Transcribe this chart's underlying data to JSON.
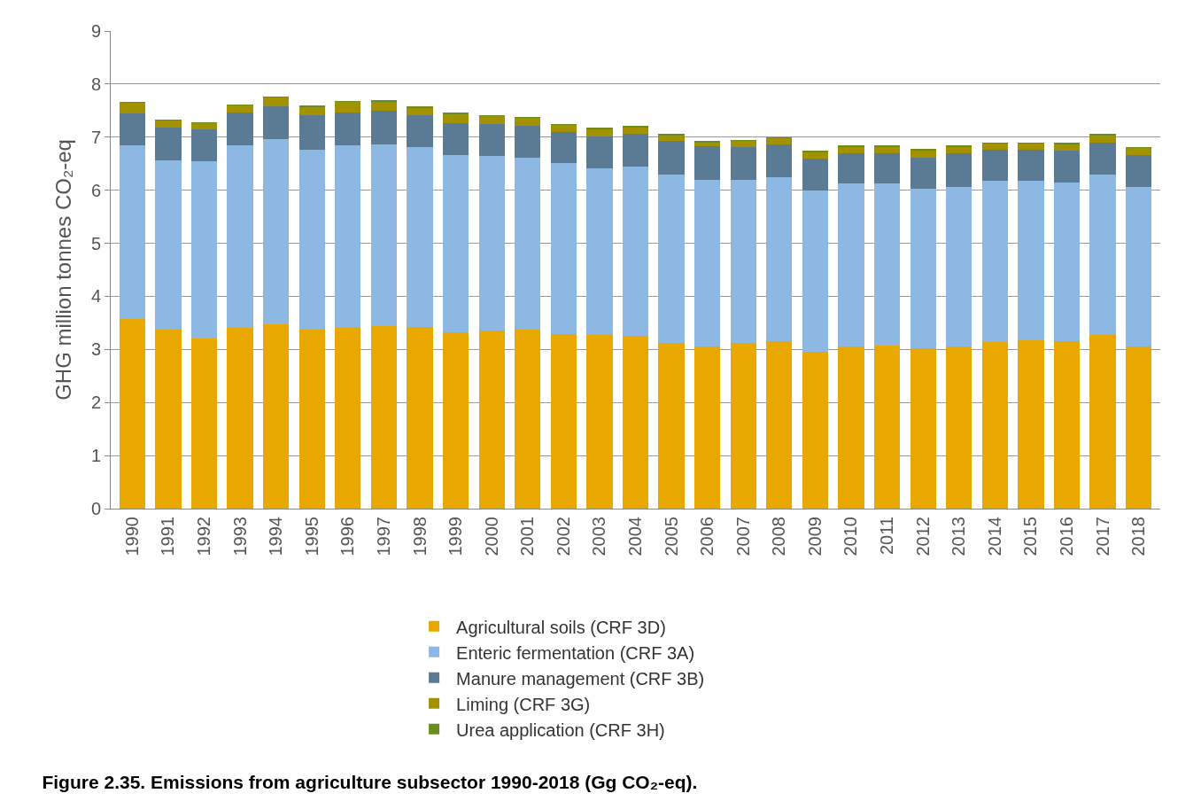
{
  "chart_data": {
    "type": "bar",
    "stacked": true,
    "title": "Figure 2.35. Emissions from agriculture subsector 1990-2018 (Gg CO₂-eq).",
    "ylabel": "GHG million tonnes CO₂-eq",
    "categories": [
      "1990",
      "1991",
      "1992",
      "1993",
      "1994",
      "1995",
      "1996",
      "1997",
      "1998",
      "1999",
      "2000",
      "2001",
      "2002",
      "2003",
      "2004",
      "2005",
      "2006",
      "2007",
      "2008",
      "2009",
      "2010",
      "2011",
      "2012",
      "2013",
      "2014",
      "2015",
      "2016",
      "2017",
      "2018"
    ],
    "series": [
      {
        "name": "Agricultural soils (CRF 3D)",
        "color": "#e8a800",
        "values": [
          3.57,
          3.38,
          3.21,
          3.41,
          3.48,
          3.37,
          3.4,
          3.44,
          3.42,
          3.33,
          3.36,
          3.38,
          3.29,
          3.27,
          3.25,
          3.13,
          3.06,
          3.12,
          3.15,
          2.95,
          3.05,
          3.07,
          3.03,
          3.06,
          3.14,
          3.17,
          3.15,
          3.28,
          3.05
        ]
      },
      {
        "name": "Enteric fermentation (CRF 3A)",
        "color": "#8db8e3",
        "values": [
          3.28,
          3.19,
          3.33,
          3.43,
          3.48,
          3.4,
          3.44,
          3.42,
          3.39,
          3.33,
          3.28,
          3.24,
          3.22,
          3.14,
          3.2,
          3.17,
          3.14,
          3.08,
          3.1,
          3.05,
          3.07,
          3.05,
          3.0,
          3.0,
          3.03,
          3.0,
          2.99,
          3.02,
          3.01
        ]
      },
      {
        "name": "Manure management (CRF 3B)",
        "color": "#5a7b93",
        "values": [
          0.6,
          0.61,
          0.6,
          0.63,
          0.62,
          0.64,
          0.63,
          0.63,
          0.61,
          0.61,
          0.6,
          0.6,
          0.58,
          0.61,
          0.62,
          0.63,
          0.63,
          0.62,
          0.62,
          0.59,
          0.57,
          0.57,
          0.59,
          0.63,
          0.59,
          0.59,
          0.6,
          0.6,
          0.6
        ]
      },
      {
        "name": "Liming (CRF 3G)",
        "color": "#a39200",
        "values": [
          0.2,
          0.14,
          0.13,
          0.13,
          0.17,
          0.17,
          0.2,
          0.19,
          0.14,
          0.17,
          0.16,
          0.15,
          0.14,
          0.14,
          0.12,
          0.11,
          0.08,
          0.11,
          0.11,
          0.13,
          0.13,
          0.13,
          0.14,
          0.13,
          0.12,
          0.12,
          0.13,
          0.14,
          0.14
        ]
      },
      {
        "name": "Urea application (CRF 3H)",
        "color": "#6b8c1e",
        "values": [
          0.01,
          0.01,
          0.01,
          0.01,
          0.01,
          0.01,
          0.01,
          0.01,
          0.01,
          0.01,
          0.01,
          0.01,
          0.01,
          0.01,
          0.01,
          0.01,
          0.01,
          0.01,
          0.01,
          0.01,
          0.01,
          0.01,
          0.01,
          0.01,
          0.01,
          0.01,
          0.01,
          0.01,
          0.01
        ]
      }
    ],
    "ylim": [
      0,
      9
    ],
    "yticks": [
      0,
      1,
      2,
      3,
      4,
      5,
      6,
      7,
      8,
      9
    ],
    "grid": "y",
    "legend": "bottom"
  }
}
